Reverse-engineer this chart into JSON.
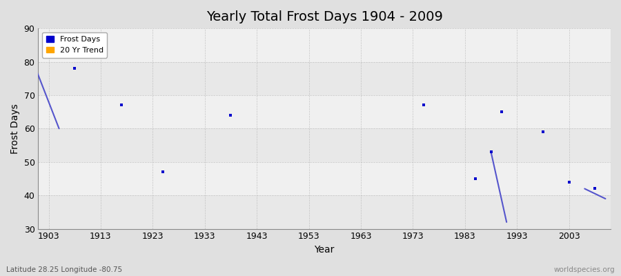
{
  "title": "Yearly Total Frost Days 1904 - 2009",
  "xlabel": "Year",
  "ylabel": "Frost Days",
  "subtitle": "Latitude 28.25 Longitude -80.75",
  "watermark": "worldspecies.org",
  "xlim": [
    1901,
    2011
  ],
  "ylim": [
    30,
    90
  ],
  "yticks": [
    30,
    40,
    50,
    60,
    70,
    80,
    90
  ],
  "xticks": [
    1903,
    1913,
    1923,
    1933,
    1943,
    1953,
    1963,
    1973,
    1983,
    1993,
    2003
  ],
  "frost_days_years": [
    1908,
    1917,
    1925,
    1938,
    1975,
    1985,
    1990,
    1998,
    2003,
    2008
  ],
  "frost_days_values": [
    78,
    67,
    47,
    64,
    67,
    45,
    65,
    59,
    44,
    42
  ],
  "trend_segments": [
    {
      "x": [
        1900,
        1905
      ],
      "y": [
        80,
        60
      ]
    },
    {
      "x": [
        1988,
        1991
      ],
      "y": [
        53,
        32
      ]
    },
    {
      "x": [
        2006,
        2010
      ],
      "y": [
        42,
        39
      ]
    }
  ],
  "trend_point_years": [
    1988
  ],
  "trend_point_values": [
    53
  ],
  "point_color": "#0000cc",
  "trend_color": "#5555cc",
  "bg_color": "#e0e0e0",
  "plot_bg_color": "#f0f0f0",
  "band_color_light": "#f5f5f5",
  "band_color_dark": "#e8e8e8",
  "grid_color": "#aaaaaa",
  "legend_labels": [
    "Frost Days",
    "20 Yr Trend"
  ],
  "legend_colors": [
    "#0000cc",
    "#ffa500"
  ],
  "band_ranges": [
    [
      30,
      40
    ],
    [
      50,
      60
    ],
    [
      70,
      80
    ]
  ],
  "band_ranges2": [
    [
      40,
      50
    ],
    [
      60,
      70
    ],
    [
      80,
      90
    ]
  ]
}
